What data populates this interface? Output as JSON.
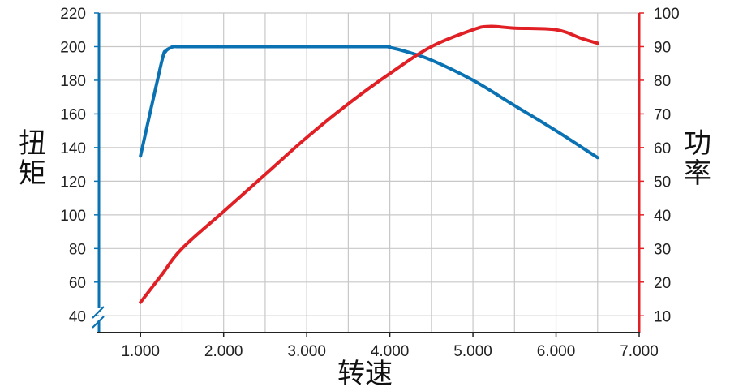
{
  "chart_data": {
    "type": "line",
    "title": "",
    "xlabel": "转速",
    "ylabel_left": "扭矩",
    "ylabel_right": "功率",
    "xlim": [
      500,
      7000
    ],
    "ylim_left": [
      30,
      220
    ],
    "ylim_right": [
      5,
      100
    ],
    "x_ticks": [
      {
        "value": 1000,
        "label": "1.000"
      },
      {
        "value": 2000,
        "label": "2.000"
      },
      {
        "value": 3000,
        "label": "3.000"
      },
      {
        "value": 4000,
        "label": "4.000"
      },
      {
        "value": 5000,
        "label": "5.000"
      },
      {
        "value": 6000,
        "label": "6.000"
      },
      {
        "value": 7000,
        "label": "7.000"
      }
    ],
    "y_left_ticks": [
      "40",
      "60",
      "80",
      "100",
      "120",
      "140",
      "160",
      "180",
      "200",
      "220"
    ],
    "y_right_ticks": [
      "10",
      "20",
      "30",
      "40",
      "50",
      "60",
      "70",
      "80",
      "90",
      "100"
    ],
    "grid": true,
    "axis_break_left": true,
    "series": [
      {
        "name": "",
        "axis": "left",
        "color": "#0a72b3",
        "x": [
          1000,
          1250,
          1300,
          1350,
          1400,
          1500,
          2000,
          3000,
          3900,
          4000,
          4200,
          4500,
          5000,
          5500,
          6000,
          6500
        ],
        "y": [
          135,
          190,
          197,
          199,
          200,
          200,
          200,
          200,
          200,
          199.5,
          197,
          192,
          180,
          165,
          150,
          134
        ]
      },
      {
        "name": "",
        "axis": "right",
        "color": "#e02025",
        "x": [
          1000,
          1250,
          1500,
          2000,
          2500,
          3000,
          3500,
          4000,
          4500,
          5000,
          5200,
          5500,
          6000,
          6300,
          6500
        ],
        "y": [
          14,
          22,
          30,
          41,
          52,
          63,
          73,
          82,
          90,
          95,
          96,
          95.5,
          95,
          92.5,
          91
        ]
      }
    ]
  }
}
